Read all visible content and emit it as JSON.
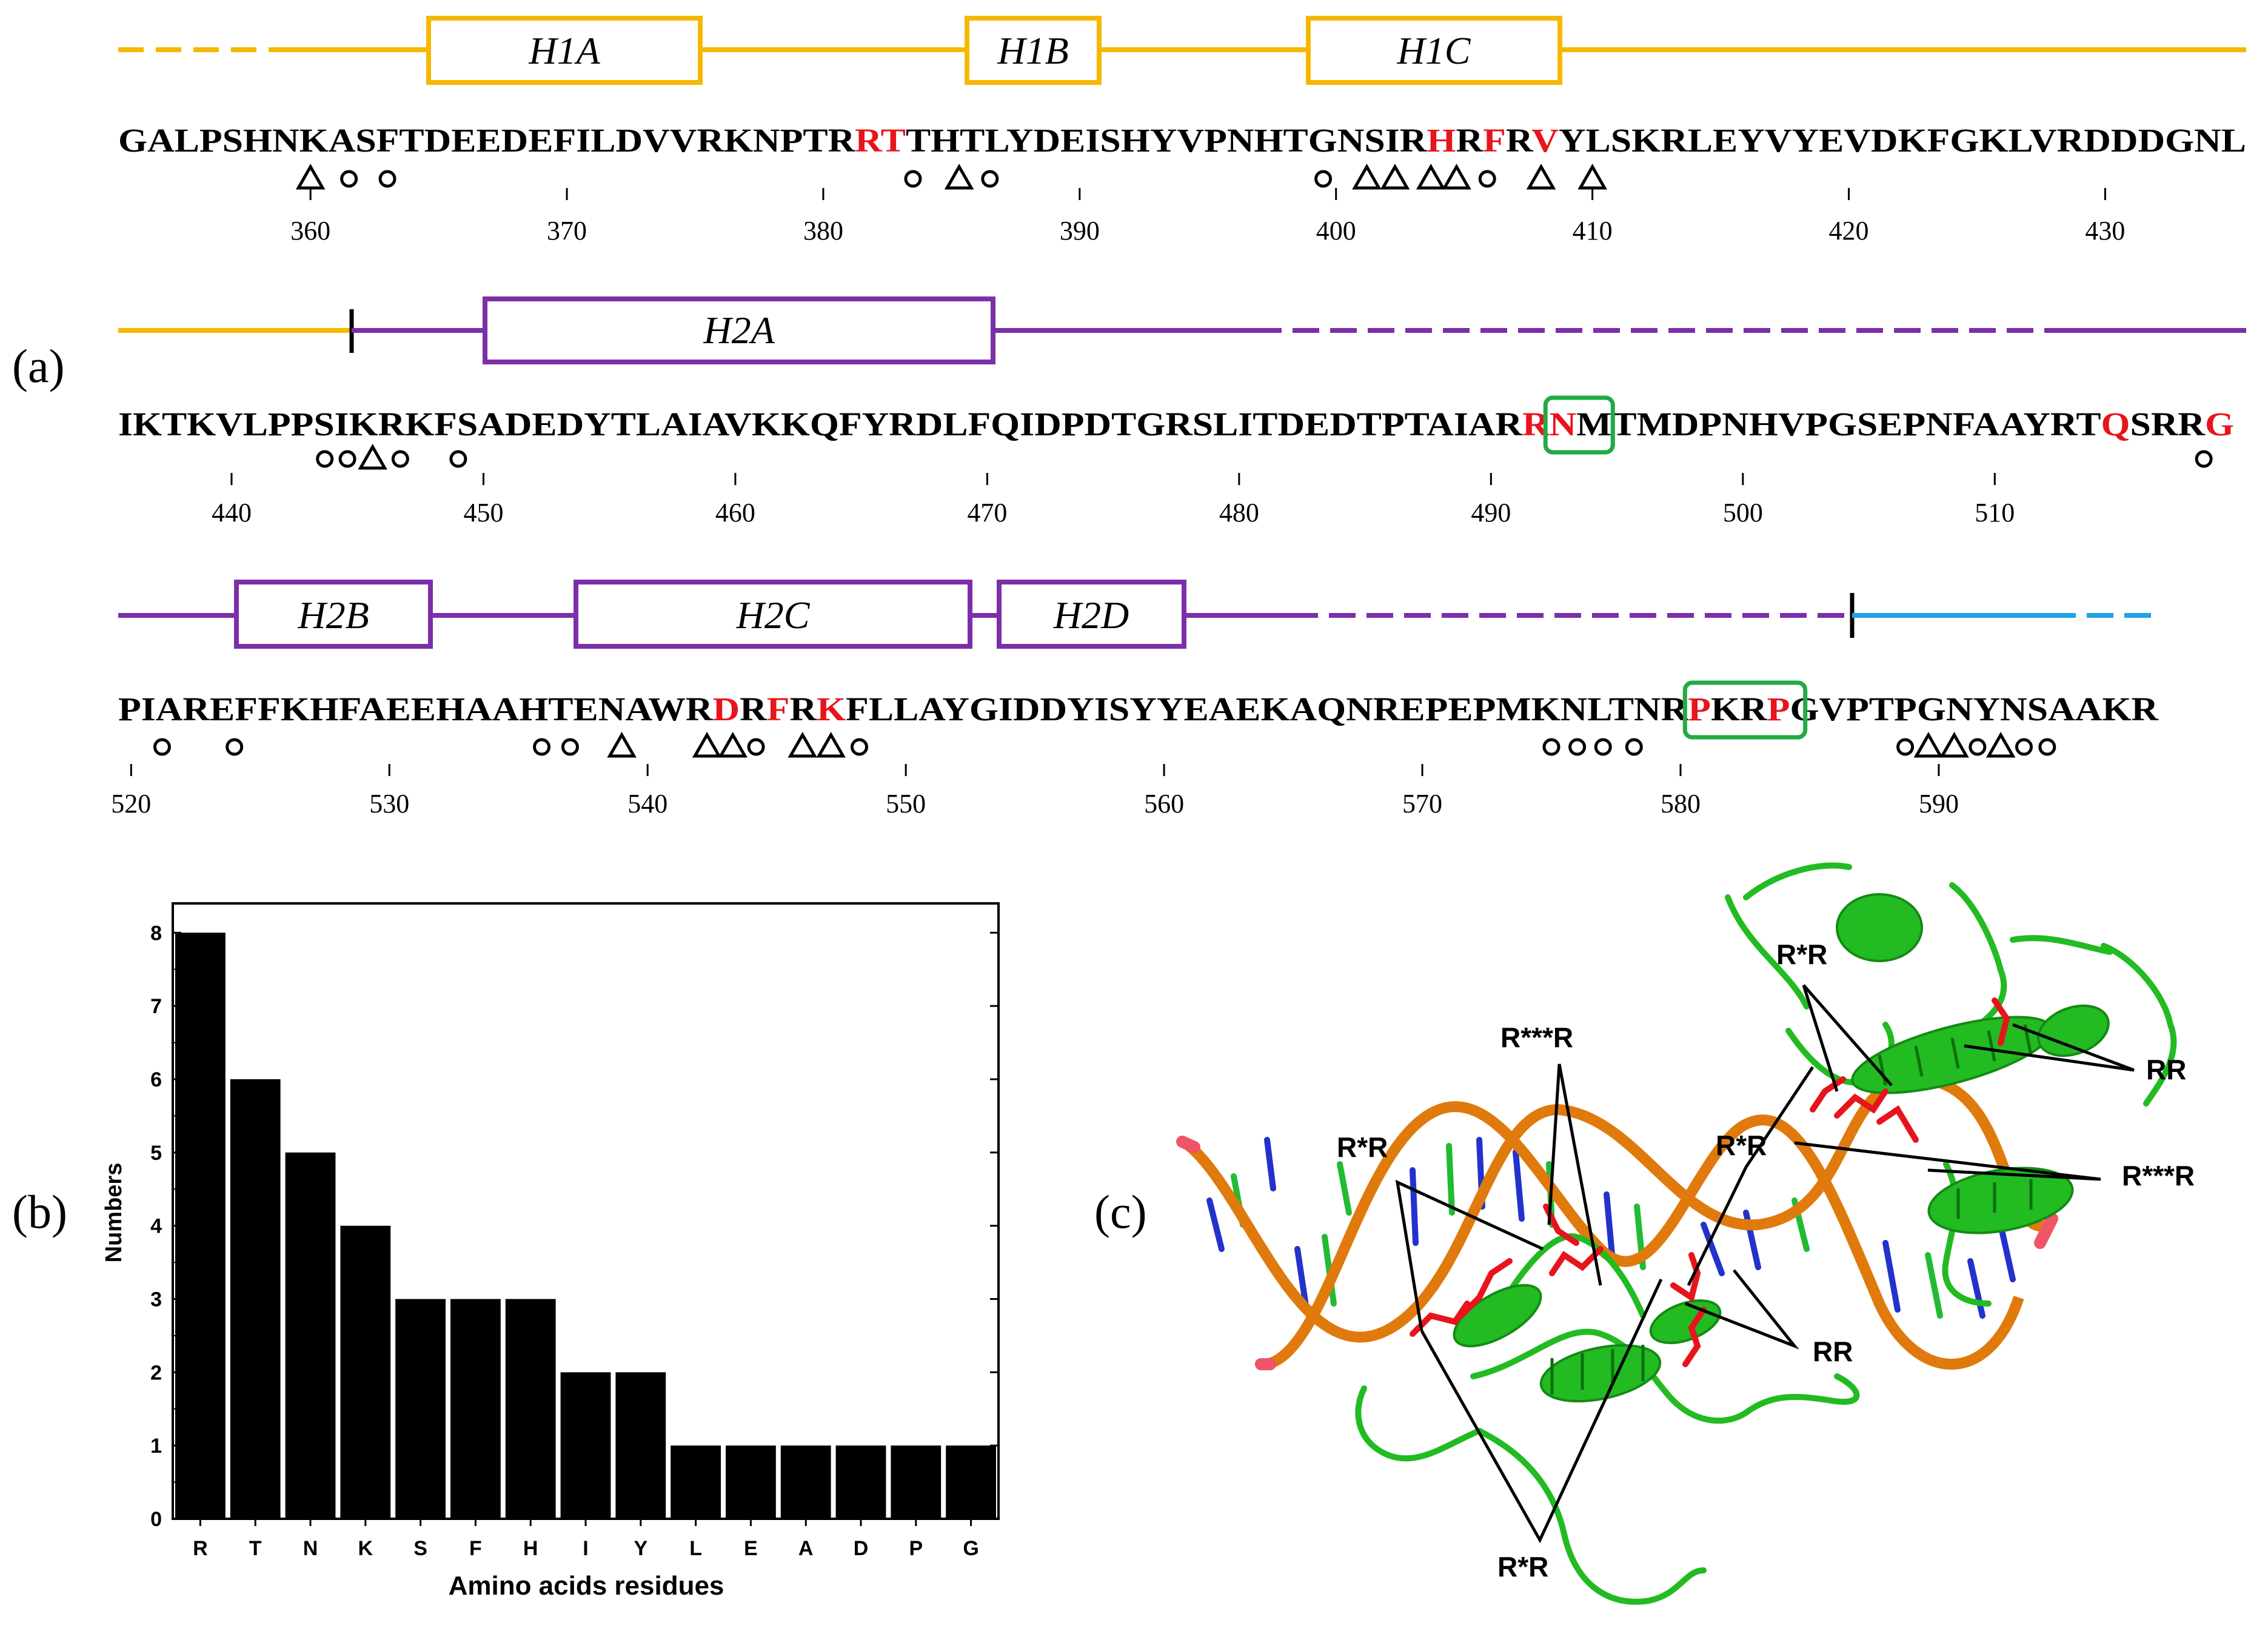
{
  "panel_labels": {
    "a": "(a)",
    "b": "(b)",
    "c": "(c)"
  },
  "colors": {
    "orange": "#f5b800",
    "purple": "#7b2fa8",
    "blue": "#1fa3e8",
    "green_box": "#22aa44",
    "red": "#e8141c",
    "black": "#000000"
  },
  "panel_a": {
    "rows": [
      {
        "sequence": "GALPSHNKASFTDEEDEFILDVVRKNPTRRTTHTLYDEISHYVPNHTGNSIRHRFRVYLSKRLEYVYEVDKFGKLVRDDDGNL",
        "start": 353,
        "highlight_red": [
          29,
          30,
          52,
          54,
          56
        ],
        "ticks": [
          "360",
          "370",
          "380",
          "390",
          "400",
          "410",
          "420",
          "430"
        ],
        "helices": [
          "H1A",
          "H1B",
          "H1C"
        ],
        "markers": [
          {
            "res": 360,
            "m": "triangle"
          },
          {
            "res": 361.5,
            "m": "circle"
          },
          {
            "res": 363,
            "m": "circle"
          },
          {
            "res": 383.5,
            "m": "circle"
          },
          {
            "res": 385.3,
            "m": "triangle"
          },
          {
            "res": 386.5,
            "m": "circle"
          },
          {
            "res": 399.5,
            "m": "circle"
          },
          {
            "res": 401.2,
            "m": "triangle"
          },
          {
            "res": 402.3,
            "m": "triangle"
          },
          {
            "res": 403.7,
            "m": "triangle"
          },
          {
            "res": 404.7,
            "m": "triangle"
          },
          {
            "res": 405.9,
            "m": "circle"
          },
          {
            "res": 408,
            "m": "triangle"
          },
          {
            "res": 410,
            "m": "triangle"
          }
        ]
      },
      {
        "sequence": "IKTKVLPPSIKRKFSADEDYTLAIAVKKQFYRDLFQIDPDTGRSLITDEDTPTAIARRNMTMDPNHVPGSEPNFAAYRTQSRRG",
        "start": 436,
        "highlight_red": [
          57,
          58,
          79,
          83,
          84
        ],
        "boxed": [
          [
            57,
            58
          ]
        ],
        "ticks": [
          "440",
          "450",
          "460",
          "470",
          "480",
          "490",
          "500",
          "510"
        ],
        "helices": [
          "H2A"
        ],
        "markers": [
          {
            "res": 443.7,
            "m": "circle"
          },
          {
            "res": 444.6,
            "m": "circle"
          },
          {
            "res": 445.6,
            "m": "triangle"
          },
          {
            "res": 446.7,
            "m": "circle"
          },
          {
            "res": 449,
            "m": "circle"
          },
          {
            "res": 518.3,
            "m": "circle"
          }
        ]
      },
      {
        "sequence": "PIAREFFKHFAEEHAAHTENAWRDRFRKFLLAYGIDDYISYYEAEKAQNREPEPMKNLTNRPKRPGVPTPGNYNSAAKR",
        "start": 520,
        "highlight_red": [
          23,
          25,
          27,
          61,
          64
        ],
        "boxed": [
          [
            61,
            64
          ]
        ],
        "ticks": [
          "520",
          "530",
          "540",
          "550",
          "560",
          "570",
          "580",
          "590"
        ],
        "helices": [
          "H2B",
          "H2C",
          "H2D"
        ],
        "markers": [
          {
            "res": 521.2,
            "m": "circle"
          },
          {
            "res": 524,
            "m": "circle"
          },
          {
            "res": 535.9,
            "m": "circle"
          },
          {
            "res": 537,
            "m": "circle"
          },
          {
            "res": 539,
            "m": "triangle"
          },
          {
            "res": 542.3,
            "m": "triangle"
          },
          {
            "res": 543.3,
            "m": "triangle"
          },
          {
            "res": 544.2,
            "m": "circle"
          },
          {
            "res": 546,
            "m": "triangle"
          },
          {
            "res": 547.1,
            "m": "triangle"
          },
          {
            "res": 548.2,
            "m": "circle"
          },
          {
            "res": 575,
            "m": "circle"
          },
          {
            "res": 576,
            "m": "circle"
          },
          {
            "res": 577,
            "m": "circle"
          },
          {
            "res": 578.2,
            "m": "circle"
          },
          {
            "res": 588.7,
            "m": "circle"
          },
          {
            "res": 589.6,
            "m": "triangle"
          },
          {
            "res": 590.6,
            "m": "triangle"
          },
          {
            "res": 591.5,
            "m": "circle"
          },
          {
            "res": 592.4,
            "m": "triangle"
          },
          {
            "res": 593.3,
            "m": "circle"
          },
          {
            "res": 594.2,
            "m": "circle"
          }
        ]
      }
    ]
  },
  "chart_data": {
    "type": "bar",
    "categories": [
      "R",
      "T",
      "N",
      "K",
      "S",
      "F",
      "H",
      "I",
      "Y",
      "L",
      "E",
      "A",
      "D",
      "P",
      "G"
    ],
    "values": [
      8,
      6,
      5,
      4,
      3,
      3,
      3,
      2,
      2,
      1,
      1,
      1,
      1,
      1,
      1
    ],
    "xlabel": "Amino acids residues",
    "ylabel": "Numbers",
    "ylim": [
      0,
      8.4
    ],
    "yticks": [
      "0",
      "1",
      "2",
      "3",
      "4",
      "5",
      "6",
      "7",
      "8"
    ],
    "bar_color": "#000000",
    "grid": false
  },
  "panel_c": {
    "labels": [
      "R*R",
      "R***R",
      "R*R",
      "R*R",
      "RR",
      "R*R",
      "RR",
      "R***R"
    ]
  }
}
